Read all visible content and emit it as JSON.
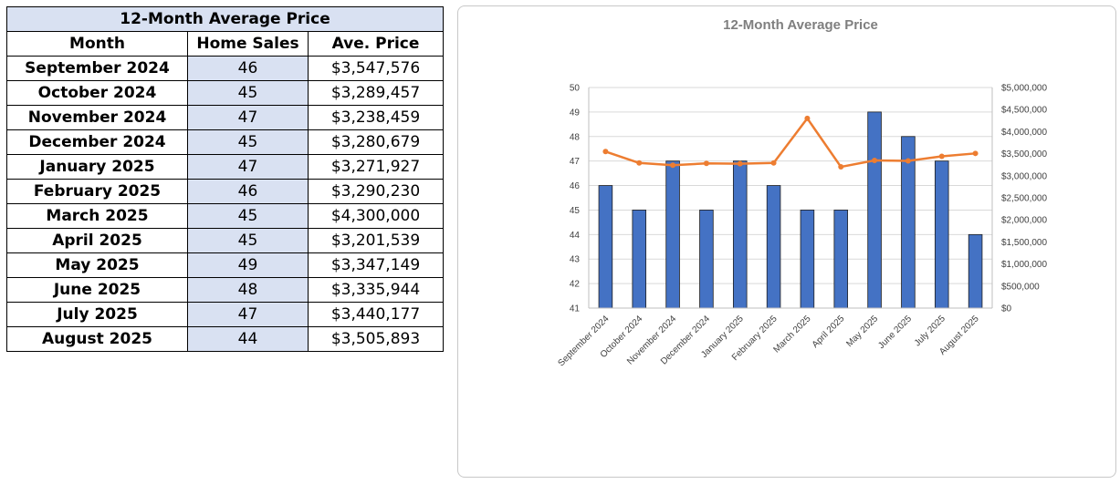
{
  "table": {
    "title": "12-Month Average Price",
    "headers": [
      "Month",
      "Home Sales",
      "Ave. Price"
    ],
    "rows": [
      {
        "month": "September 2024",
        "sales": "46",
        "price": "$3,547,576"
      },
      {
        "month": "October 2024",
        "sales": "45",
        "price": "$3,289,457"
      },
      {
        "month": "November 2024",
        "sales": "47",
        "price": "$3,238,459"
      },
      {
        "month": "December 2024",
        "sales": "45",
        "price": "$3,280,679"
      },
      {
        "month": "January 2025",
        "sales": "47",
        "price": "$3,271,927"
      },
      {
        "month": "February 2025",
        "sales": "46",
        "price": "$3,290,230"
      },
      {
        "month": "March 2025",
        "sales": "45",
        "price": "$4,300,000"
      },
      {
        "month": "April 2025",
        "sales": "45",
        "price": "$3,201,539"
      },
      {
        "month": "May 2025",
        "sales": "49",
        "price": "$3,347,149"
      },
      {
        "month": "June 2025",
        "sales": "48",
        "price": "$3,335,944"
      },
      {
        "month": "July 2025",
        "sales": "47",
        "price": "$3,440,177"
      },
      {
        "month": "August 2025",
        "sales": "44",
        "price": "$3,505,893"
      }
    ]
  },
  "chart_data": {
    "type": "bar",
    "title": "12-Month Average Price",
    "categories": [
      "September 2024",
      "October 2024",
      "November 2024",
      "December 2024",
      "January 2025",
      "February 2025",
      "March 2025",
      "April 2025",
      "May 2025",
      "June 2025",
      "July 2025",
      "August 2025"
    ],
    "series": [
      {
        "type": "bar",
        "axis": "left",
        "color": "#4472c4",
        "values": [
          46,
          45,
          47,
          45,
          47,
          46,
          45,
          45,
          49,
          48,
          47,
          44
        ]
      },
      {
        "type": "line",
        "axis": "right",
        "color": "#ed7d31",
        "values": [
          3547576,
          3289457,
          3238459,
          3280679,
          3271927,
          3290230,
          4300000,
          3201539,
          3347149,
          3335944,
          3440177,
          3505893
        ]
      }
    ],
    "y_left": {
      "min": 41,
      "max": 50,
      "ticks": [
        "41",
        "42",
        "43",
        "44",
        "45",
        "46",
        "47",
        "48",
        "49",
        "50"
      ]
    },
    "y_right": {
      "min": 0,
      "max": 5000000,
      "ticks": [
        "$0",
        "$500,000",
        "$1,000,000",
        "$1,500,000",
        "$2,000,000",
        "$2,500,000",
        "$3,000,000",
        "$3,500,000",
        "$4,000,000",
        "$4,500,000",
        "$5,000,000"
      ]
    },
    "grid": true,
    "legend": "none"
  }
}
